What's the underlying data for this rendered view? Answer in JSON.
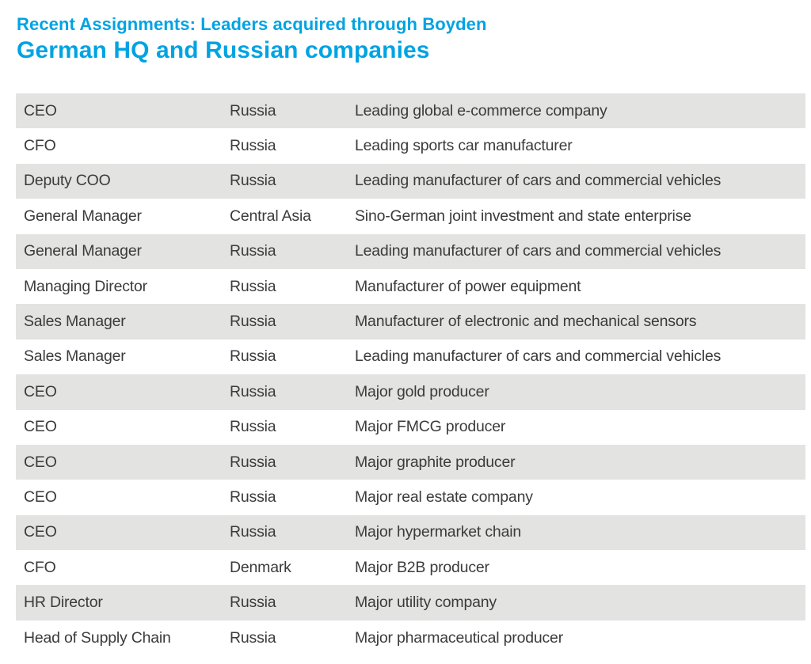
{
  "header": {
    "kicker": "Recent Assignments: Leaders acquired through Boyden",
    "title": "German HQ and Russian companies"
  },
  "colors": {
    "accent": "#00a3e2",
    "row_stripe": "#e3e3e2",
    "text": "#3b3b3b"
  },
  "table": {
    "rows": [
      {
        "position": "CEO",
        "region": "Russia",
        "company": "Leading global e-commerce company"
      },
      {
        "position": "CFO",
        "region": "Russia",
        "company": "Leading sports car manufacturer"
      },
      {
        "position": "Deputy COO",
        "region": "Russia",
        "company": "Leading manufacturer of cars and commercial vehicles"
      },
      {
        "position": "General Manager",
        "region": "Central Asia",
        "company": "Sino-German joint investment and state enterprise"
      },
      {
        "position": "General Manager",
        "region": "Russia",
        "company": "Leading manufacturer of cars and commercial vehicles"
      },
      {
        "position": "Managing Director",
        "region": "Russia",
        "company": "Manufacturer of power equipment"
      },
      {
        "position": "Sales Manager",
        "region": "Russia",
        "company": "Manufacturer of electronic and mechanical sensors"
      },
      {
        "position": "Sales Manager",
        "region": "Russia",
        "company": "Leading manufacturer of cars and commercial vehicles"
      },
      {
        "position": "CEO",
        "region": "Russia",
        "company": "Major gold producer"
      },
      {
        "position": "CEO",
        "region": "Russia",
        "company": "Major FMCG producer"
      },
      {
        "position": "CEO",
        "region": "Russia",
        "company": "Major graphite producer"
      },
      {
        "position": "CEO",
        "region": "Russia",
        "company": "Major real estate company"
      },
      {
        "position": "CEO",
        "region": "Russia",
        "company": "Major hypermarket chain"
      },
      {
        "position": "CFO",
        "region": "Denmark",
        "company": "Major B2B producer"
      },
      {
        "position": "HR Director",
        "region": "Russia",
        "company": "Major utility company"
      },
      {
        "position": "Head of Supply Chain",
        "region": "Russia",
        "company": "Major pharmaceutical producer"
      }
    ]
  }
}
